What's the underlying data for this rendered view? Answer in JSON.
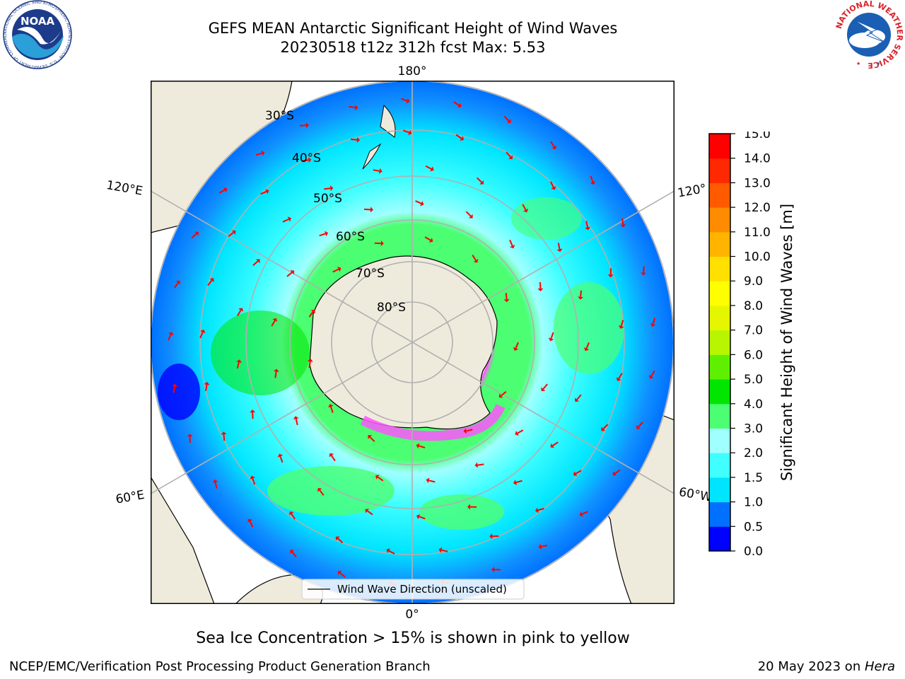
{
  "header": {
    "title_line1": "GEFS MEAN Antarctic Significant Height of Wind Waves",
    "title_line2": "20230518 t12z 312h fcst   Max: 5.53"
  },
  "logos": {
    "noaa_text": "NOAA",
    "noaa_ring_text": "NATIONAL OCEANIC AND ATMOSPHERIC ADMINISTRATION · U.S. DEPARTMENT OF COMMERCE",
    "nws_ring_text": "NATIONAL WEATHER SERVICE"
  },
  "map": {
    "projection": "south-polar-stereographic",
    "longitude_labels": {
      "top": "180°",
      "bottom": "0°",
      "upper_left": "120°E",
      "upper_right": "120°",
      "lower_left": "60°E",
      "lower_right": "60°W"
    },
    "latitude_labels": [
      "30°S",
      "40°S",
      "50°S",
      "60°S",
      "70°S",
      "80°S"
    ],
    "legend_label": "Wind Wave Direction (unscaled)"
  },
  "colorbar": {
    "title": "Significant Height of Wind Waves [m]",
    "ticks": [
      "0.0",
      "0.5",
      "1.0",
      "1.5",
      "2.0",
      "3.0",
      "4.0",
      "5.0",
      "6.0",
      "7.0",
      "8.0",
      "9.0",
      "10.0",
      "11.0",
      "12.0",
      "13.0",
      "14.0",
      "15.0"
    ],
    "colors": [
      "#0000ff",
      "#0070ff",
      "#00e5ff",
      "#40ffff",
      "#a0ffff",
      "#4cff72",
      "#00e600",
      "#5ef000",
      "#b8f500",
      "#e6f500",
      "#ffff00",
      "#ffe000",
      "#ffb400",
      "#ff8c00",
      "#ff5a00",
      "#ff2800",
      "#ff0000"
    ]
  },
  "footer": {
    "note": "Sea Ice Concentration > 15% is shown in pink to yellow",
    "left": "NCEP/EMC/Verification Post Processing Product Generation Branch",
    "right_date": "20 May 2023 on ",
    "right_host": "Hera"
  }
}
